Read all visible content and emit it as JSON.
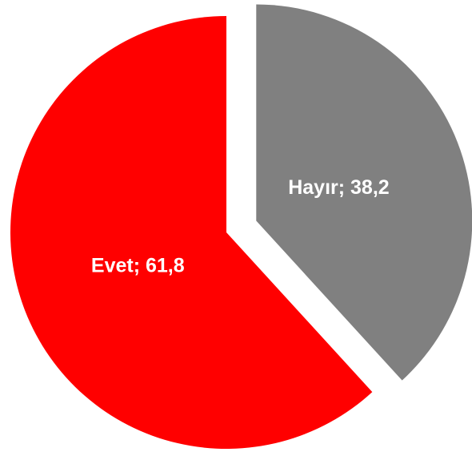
{
  "chart_data": {
    "type": "pie",
    "values": [
      38.2,
      61.8
    ],
    "value_labels": [
      "Hayır; 38,2",
      "Evet; 61,8"
    ],
    "colors": [
      "#808080",
      "#ff0000"
    ],
    "start_angle": 0,
    "direction": "clockwise",
    "explode": [
      true,
      false
    ]
  }
}
